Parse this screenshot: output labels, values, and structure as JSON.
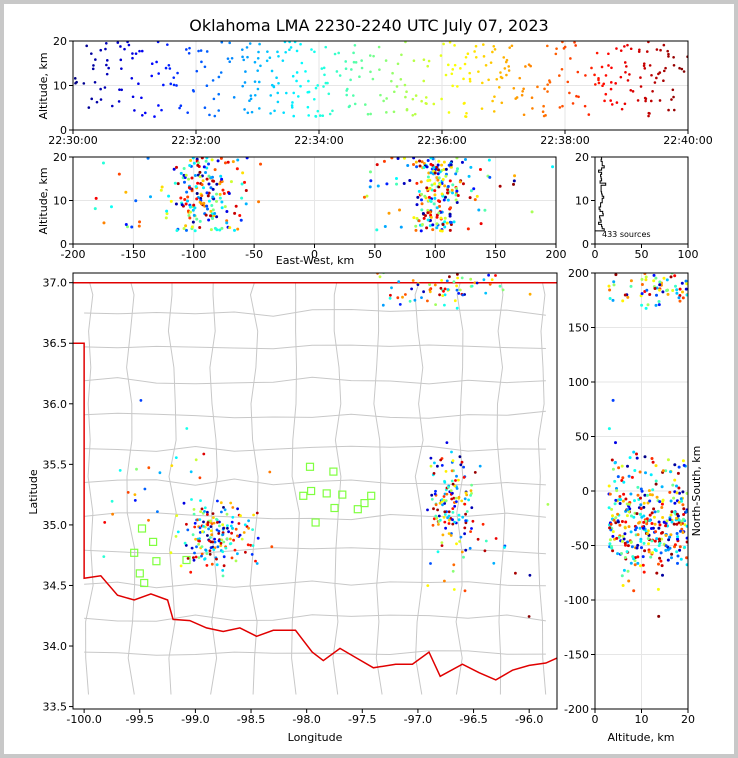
{
  "title": "Oklahoma LMA 2230-2240 UTC July 07, 2023",
  "colors": {
    "state_border": "#e00000",
    "county_lines": "#c8c8c8",
    "station_marker": "#80ff40",
    "histogram": "#000000"
  },
  "chart_data": [
    {
      "name": "time-altitude",
      "type": "scatter",
      "xlabel": "",
      "ylabel": "Altitude, km",
      "xticks": [
        "22:30:00",
        "22:32:00",
        "22:34:00",
        "22:36:00",
        "22:38:00",
        "22:40:00"
      ],
      "xlim_seconds": [
        0,
        600
      ],
      "ylim": [
        0,
        20
      ],
      "yticks": [
        0,
        10,
        20
      ],
      "grid": true,
      "color_by": "time (jet colormap, blue to red)"
    },
    {
      "name": "eastwest-altitude",
      "type": "scatter",
      "xlabel": "East-West, km",
      "ylabel": "Altitude, km",
      "xlim": [
        -200,
        200
      ],
      "xticks": [
        -200,
        -150,
        -100,
        -50,
        0,
        50,
        100,
        150,
        200
      ],
      "ylim": [
        0,
        20
      ],
      "yticks": [
        0,
        10,
        20
      ],
      "grid": true
    },
    {
      "name": "altitude-histogram",
      "type": "line",
      "xlabel": "",
      "ylabel": "",
      "annotation": "433 sources",
      "xlim": [
        0,
        100
      ],
      "xticks": [
        0,
        50,
        100
      ],
      "ylim": [
        0,
        20
      ],
      "yticks": [
        0,
        10,
        20
      ]
    },
    {
      "name": "plan-view-map",
      "type": "scatter",
      "xlabel": "Longitude",
      "ylabel": "Latitude",
      "xlim": [
        -100.1,
        -95.75
      ],
      "xticks": [
        "-100.0",
        "-99.5",
        "-99.0",
        "-98.5",
        "-98.0",
        "-97.5",
        "-97.0",
        "-96.5",
        "-96.0"
      ],
      "ylim": [
        33.48,
        37.08
      ],
      "yticks": [
        "33.5",
        "34.0",
        "34.5",
        "35.0",
        "35.5",
        "36.0",
        "36.5",
        "37.0"
      ],
      "stations": [
        {
          "lon": -99.48,
          "lat": 34.97
        },
        {
          "lon": -99.38,
          "lat": 34.86
        },
        {
          "lon": -99.55,
          "lat": 34.77
        },
        {
          "lon": -99.35,
          "lat": 34.7
        },
        {
          "lon": -99.08,
          "lat": 34.71
        },
        {
          "lon": -99.5,
          "lat": 34.6
        },
        {
          "lon": -99.46,
          "lat": 34.52
        },
        {
          "lon": -98.03,
          "lat": 35.24
        },
        {
          "lon": -97.96,
          "lat": 35.28
        },
        {
          "lon": -97.76,
          "lat": 35.44
        },
        {
          "lon": -97.82,
          "lat": 35.26
        },
        {
          "lon": -97.68,
          "lat": 35.25
        },
        {
          "lon": -97.75,
          "lat": 35.14
        },
        {
          "lon": -97.92,
          "lat": 35.02
        },
        {
          "lon": -97.54,
          "lat": 35.13
        },
        {
          "lon": -97.48,
          "lat": 35.18
        },
        {
          "lon": -97.42,
          "lat": 35.24
        },
        {
          "lon": -97.97,
          "lat": 35.48
        }
      ],
      "grid": true
    },
    {
      "name": "altitude-northsouth",
      "type": "scatter",
      "xlabel": "Altitude, km",
      "ylabel": "North-South, km",
      "xlim": [
        0,
        20
      ],
      "xticks": [
        0,
        10,
        20
      ],
      "ylim": [
        -200,
        200
      ],
      "yticks": [
        -200,
        -150,
        -100,
        -50,
        0,
        50,
        100,
        150,
        200
      ],
      "grid": true
    }
  ]
}
